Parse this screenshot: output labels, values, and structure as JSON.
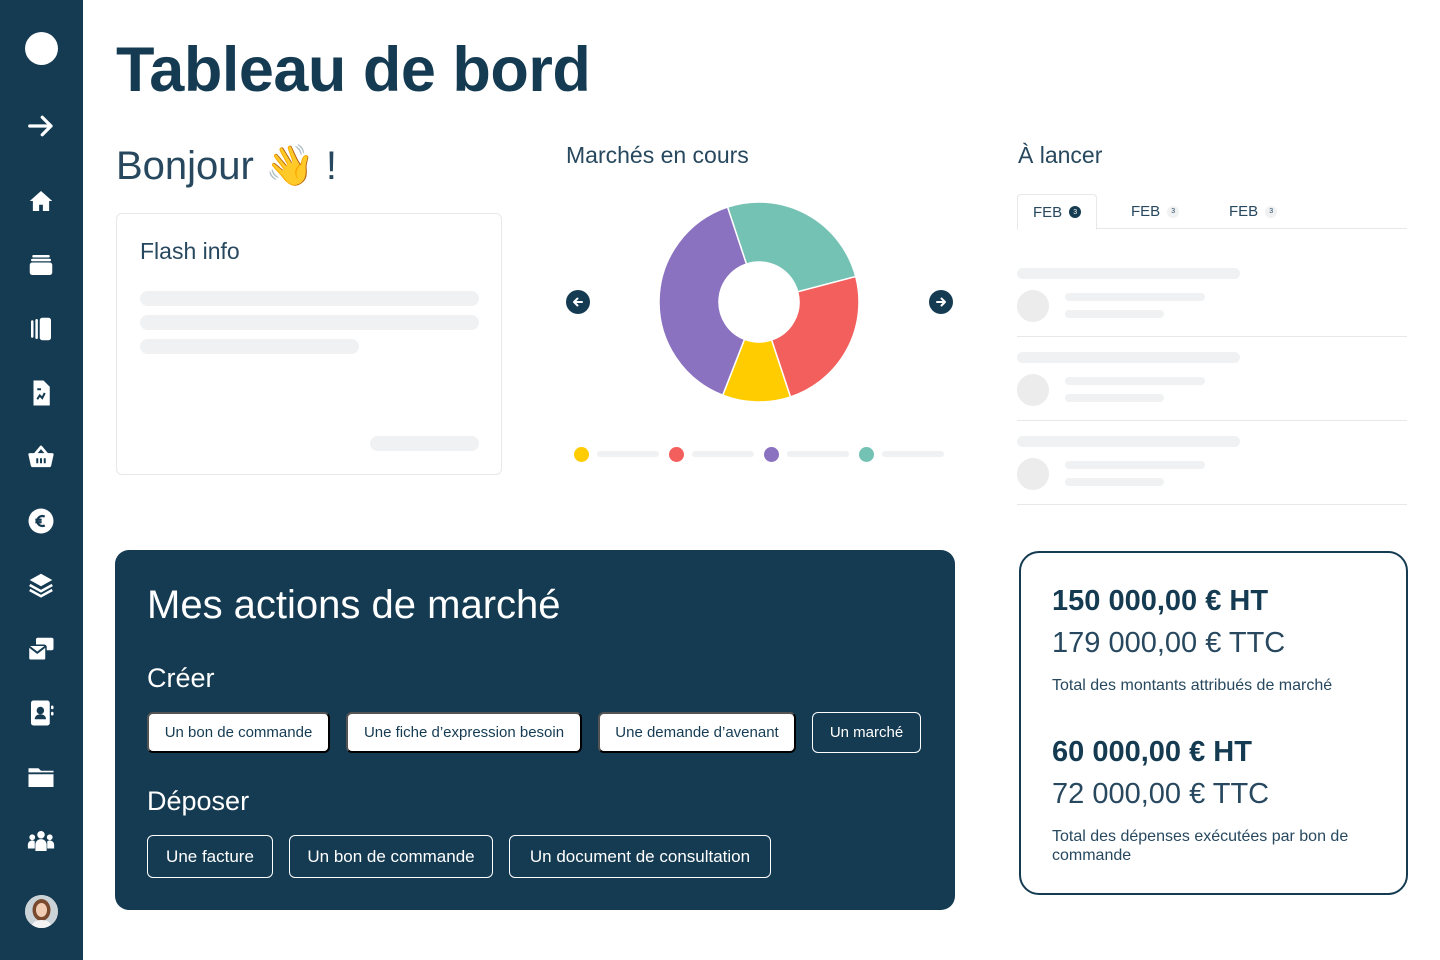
{
  "header": {
    "title": "Tableau de bord"
  },
  "greeting": {
    "text": "Bonjour 👋 !"
  },
  "flash": {
    "title": "Flash info"
  },
  "markets": {
    "title": "Marchés en cours",
    "prev_icon": "arrow-left-icon",
    "next_icon": "arrow-right-icon"
  },
  "chart_data": {
    "type": "pie",
    "slices": [
      {
        "color": "#74c2b4",
        "value": 26
      },
      {
        "color": "#f25f5c",
        "value": 24
      },
      {
        "color": "#ffcc00",
        "value": 11
      },
      {
        "color": "#8b72c1",
        "value": 39
      }
    ]
  },
  "launch": {
    "title": "À lancer",
    "tabs": [
      {
        "label": "FEB",
        "badge": "3"
      },
      {
        "label": "FEB",
        "badge": "3"
      },
      {
        "label": "FEB",
        "badge": "3"
      }
    ]
  },
  "actions": {
    "title": "Mes actions de marché",
    "create": {
      "title": "Créer",
      "buttons": [
        "Un bon de commande",
        "Une fiche d’expression besoin",
        "Une demande d’avenant",
        "Un marché"
      ]
    },
    "deposit": {
      "title": "Déposer",
      "buttons": [
        "Une facture",
        "Un bon de commande",
        "Un document de consultation"
      ]
    }
  },
  "totals": {
    "awarded": {
      "ht": "150 000,00 € HT",
      "ttc": "179 000,00 € TTC",
      "note": "Total des montants attribués de marché"
    },
    "spent": {
      "ht": "60 000,00 € HT",
      "ttc": "72 000,00 € TTC",
      "note": "Total des dépenses exécutées par bon de commande"
    }
  },
  "sidebar": {
    "icons": [
      "arrow-right-icon",
      "home-icon",
      "stack-icon",
      "book-icon",
      "document-chart-icon",
      "basket-icon",
      "euro-icon",
      "layers-icon",
      "mail-icon",
      "contact-icon",
      "folder-icon",
      "team-icon"
    ]
  },
  "colors": {
    "primary": "#153b52",
    "teal": "#74c2b4",
    "red": "#f25f5c",
    "yellow": "#ffcc00",
    "purple": "#8b72c1"
  }
}
